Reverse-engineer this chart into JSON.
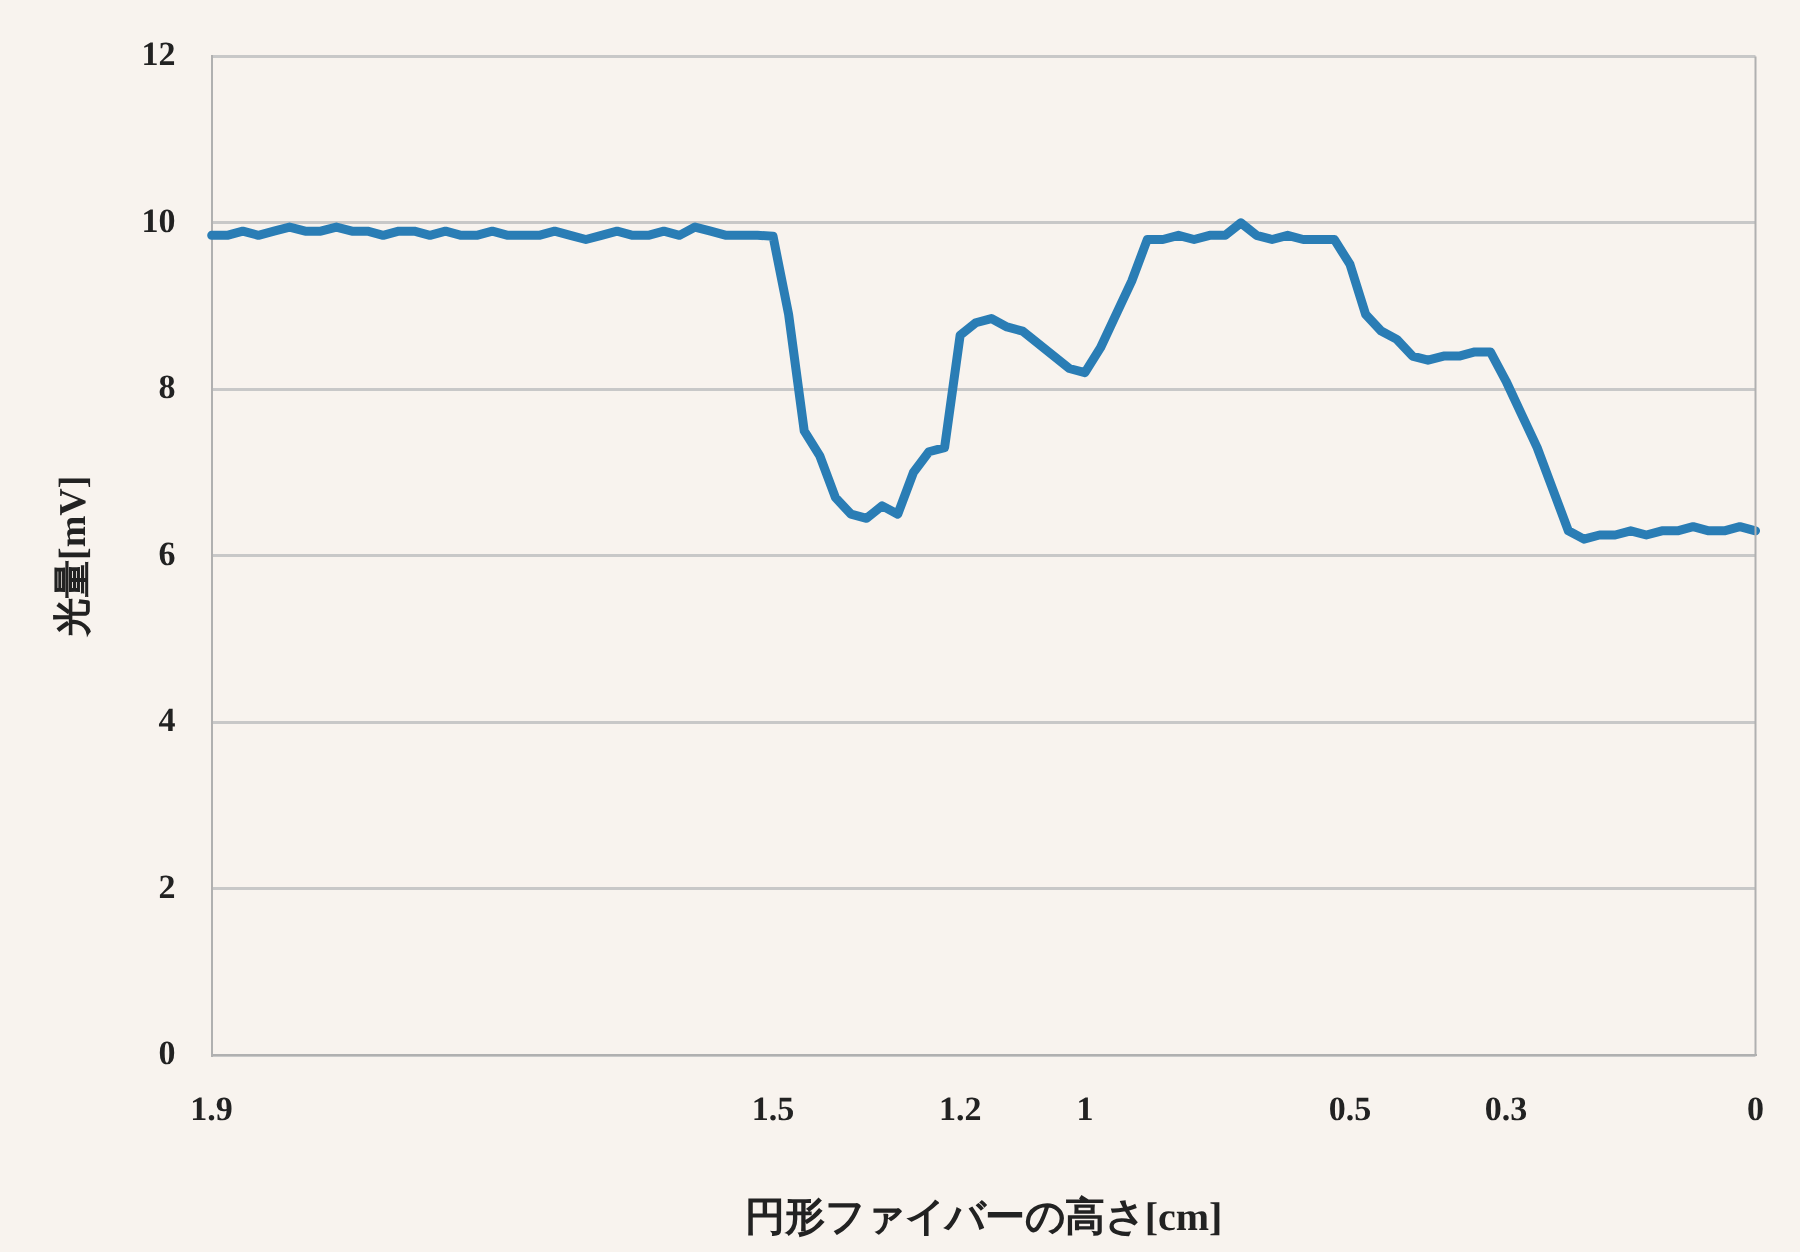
{
  "chart_data": {
    "type": "line",
    "xlabel": "円形ファイバーの高さ[cm]",
    "ylabel": "光量[mV]",
    "categories": [
      "1.9",
      null,
      null,
      null,
      null,
      null,
      null,
      null,
      null,
      null,
      null,
      null,
      null,
      null,
      null,
      null,
      null,
      null,
      null,
      null,
      null,
      null,
      null,
      null,
      null,
      null,
      null,
      null,
      null,
      null,
      null,
      null,
      null,
      null,
      null,
      null,
      "1.5",
      null,
      null,
      null,
      null,
      null,
      null,
      null,
      null,
      null,
      null,
      null,
      "1.2",
      null,
      null,
      null,
      null,
      null,
      null,
      null,
      "1",
      null,
      null,
      null,
      null,
      null,
      null,
      null,
      null,
      null,
      null,
      null,
      null,
      null,
      null,
      null,
      null,
      "0.5",
      null,
      null,
      null,
      null,
      null,
      null,
      null,
      null,
      null,
      "0.3",
      null,
      null,
      null,
      null,
      null,
      null,
      null,
      null,
      null,
      null,
      null,
      null,
      null,
      null,
      null,
      "0"
    ],
    "series": [
      {
        "color": "#2a7db5",
        "values": [
          9.85,
          9.85,
          9.9,
          9.85,
          9.9,
          9.95,
          9.9,
          9.9,
          9.95,
          9.9,
          9.9,
          9.85,
          9.9,
          9.9,
          9.85,
          9.9,
          9.85,
          9.85,
          9.9,
          9.85,
          9.85,
          9.85,
          9.9,
          9.85,
          9.8,
          9.85,
          9.9,
          9.85,
          9.85,
          9.9,
          9.85,
          9.95,
          9.9,
          9.85,
          9.85,
          9.85,
          9.84,
          8.9,
          7.5,
          7.2,
          6.7,
          6.5,
          6.45,
          6.6,
          6.5,
          7.0,
          7.25,
          7.3,
          8.65,
          8.8,
          8.85,
          8.75,
          8.7,
          8.55,
          8.4,
          8.25,
          8.2,
          8.5,
          8.9,
          9.3,
          9.8,
          9.8,
          9.85,
          9.8,
          9.85,
          9.85,
          10.0,
          9.85,
          9.8,
          9.85,
          9.8,
          9.8,
          9.8,
          9.5,
          8.9,
          8.7,
          8.6,
          8.4,
          8.35,
          8.4,
          8.4,
          8.45,
          8.45,
          8.1,
          7.7,
          7.3,
          6.8,
          6.3,
          6.2,
          6.25,
          6.25,
          6.3,
          6.25,
          6.3,
          6.3,
          6.35,
          6.3,
          6.3,
          6.35,
          6.3
        ]
      }
    ],
    "ylim": [
      0,
      12
    ],
    "yticks": [
      0,
      2,
      4,
      6,
      8,
      10,
      12
    ],
    "grid": "y",
    "legend": false,
    "marker": "none",
    "line_style": "solid"
  }
}
